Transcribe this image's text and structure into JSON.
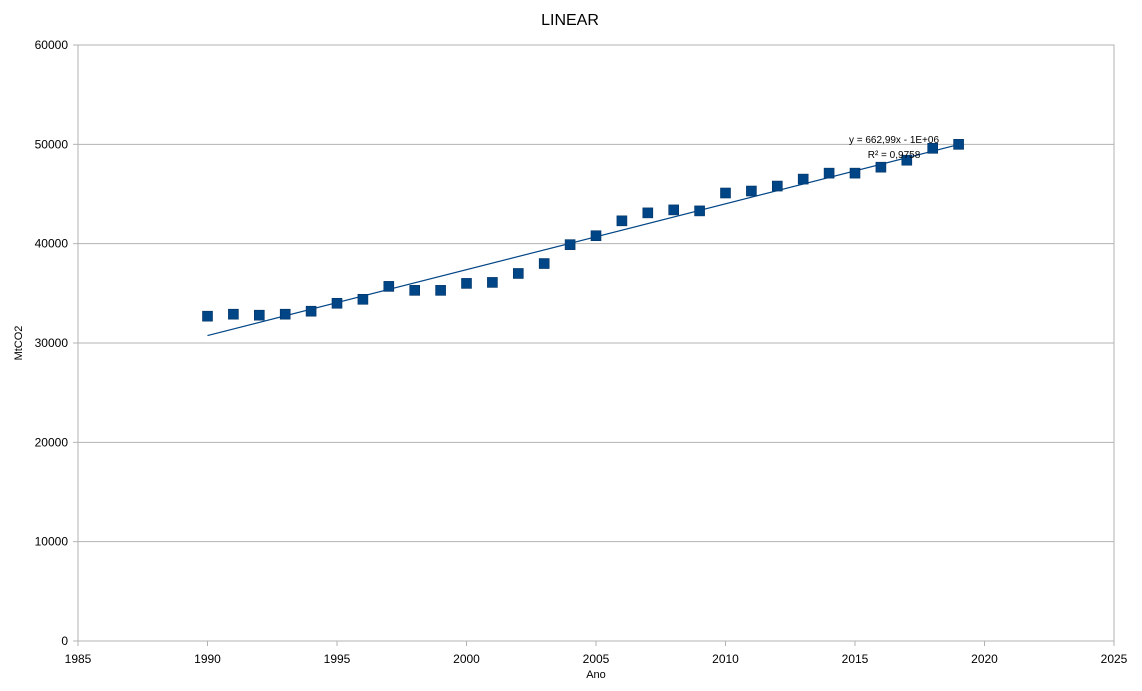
{
  "chart_data": {
    "type": "scatter",
    "title": "LINEAR",
    "xlabel": "Ano",
    "ylabel": "MtCO2",
    "xlim": [
      1985,
      2025
    ],
    "ylim": [
      0,
      60000
    ],
    "x_ticks": [
      1985,
      1990,
      1995,
      2000,
      2005,
      2010,
      2015,
      2020,
      2025
    ],
    "y_ticks": [
      0,
      10000,
      20000,
      30000,
      40000,
      50000,
      60000
    ],
    "grid": {
      "horizontal": true,
      "vertical": false
    },
    "legend": "none",
    "series": [
      {
        "color": "#004586",
        "marker": "square",
        "x": [
          1990,
          1991,
          1992,
          1993,
          1994,
          1995,
          1996,
          1997,
          1998,
          1999,
          2000,
          2001,
          2002,
          2003,
          2004,
          2005,
          2006,
          2007,
          2008,
          2009,
          2010,
          2011,
          2012,
          2013,
          2014,
          2015,
          2016,
          2017,
          2018,
          2019
        ],
        "y": [
          32700,
          32900,
          32800,
          32900,
          33200,
          34000,
          34400,
          35700,
          35300,
          35300,
          36000,
          36100,
          37000,
          38000,
          39900,
          40800,
          42300,
          43100,
          43400,
          43300,
          45100,
          45300,
          45800,
          46500,
          47100,
          47100,
          47700,
          48400,
          49600,
          50000
        ]
      }
    ],
    "trendline": {
      "type": "linear",
      "color": "#004586",
      "x_range": [
        1990,
        2019
      ],
      "y_range": [
        30750,
        49980
      ],
      "equation_label": "y = 662,99x - 1E+06",
      "r2_label": "R² = 0,9758"
    }
  }
}
